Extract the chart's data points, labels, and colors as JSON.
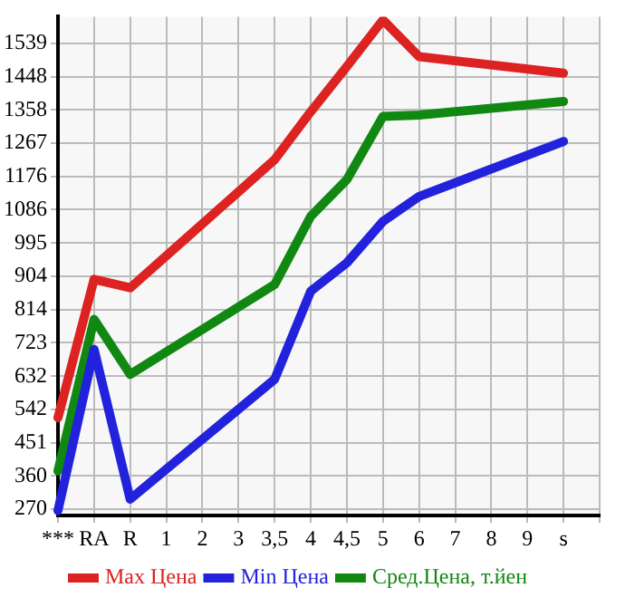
{
  "chart_data": {
    "type": "line",
    "categories": [
      "***",
      "RA",
      "R",
      "1",
      "2",
      "3",
      "3,5",
      "4",
      "4,5",
      "5",
      "6",
      "7",
      "8",
      "9",
      "s"
    ],
    "series": [
      {
        "name": "Max Цена",
        "color": "#dd2222",
        "values": [
          519,
          896,
          873,
          null,
          null,
          null,
          1222,
          1353,
          1476,
          1603,
          1503,
          null,
          null,
          null,
          1458
        ]
      },
      {
        "name": "Min Цена",
        "color": "#2222dd",
        "values": [
          266,
          705,
          297,
          null,
          null,
          null,
          624,
          864,
          941,
          1054,
          1122,
          null,
          null,
          null,
          1272
        ]
      },
      {
        "name": "Сред.Цена, т.йен",
        "color": "#118811",
        "values": [
          374,
          787,
          637,
          null,
          null,
          null,
          882,
          1068,
          1168,
          1340,
          1344,
          null,
          null,
          null,
          1381
        ]
      }
    ],
    "ylim": [
      252,
      1612
    ],
    "yticks": [
      270,
      360,
      451,
      542,
      632,
      723,
      814,
      904,
      995,
      1086,
      1176,
      1267,
      1358,
      1448,
      1539
    ],
    "grid": true,
    "legend": "bottom",
    "marker": "none",
    "line_style": "solid"
  }
}
